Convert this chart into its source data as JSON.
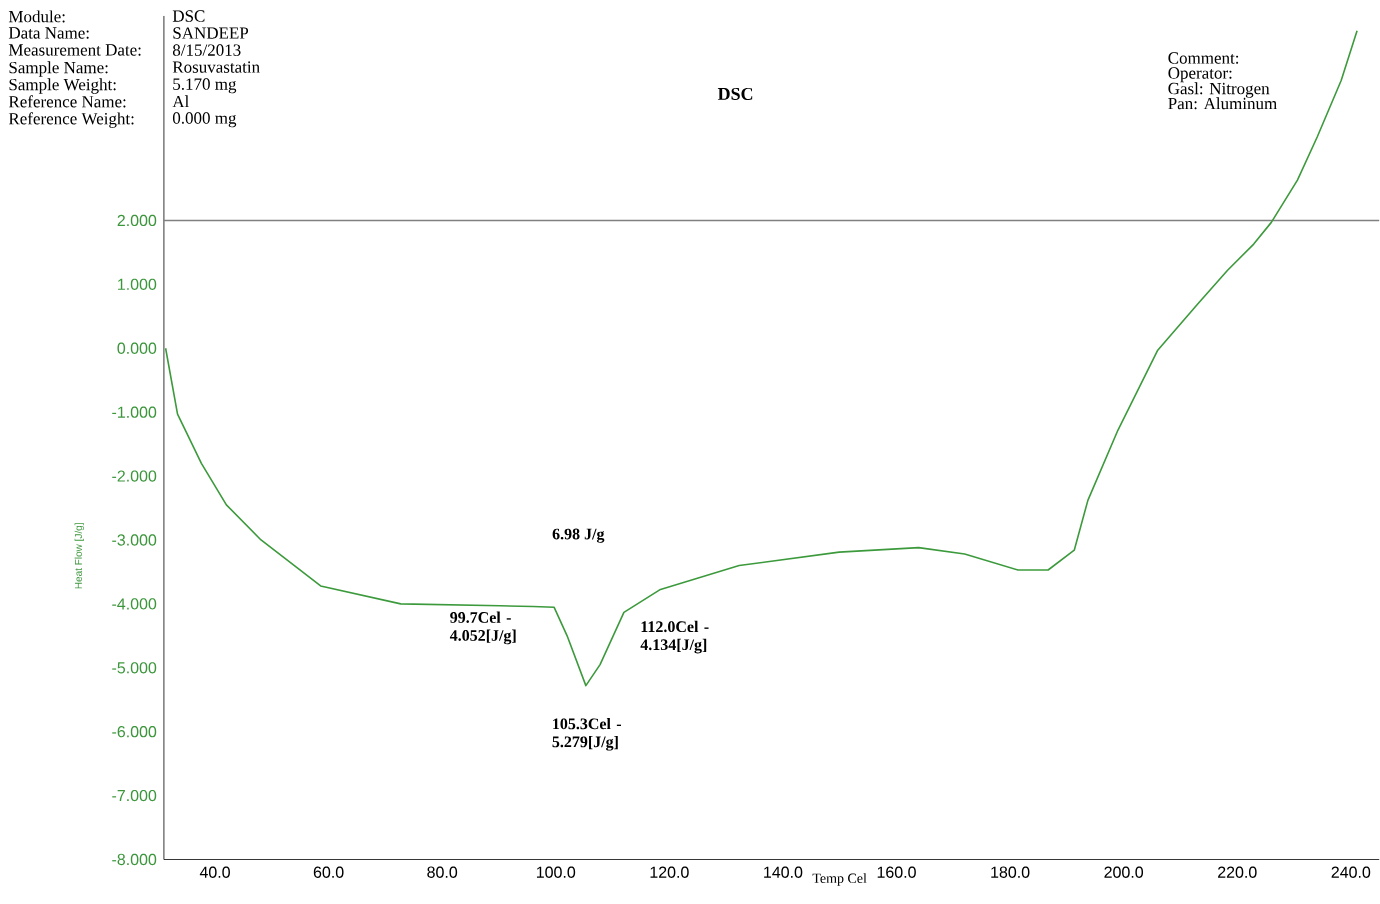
{
  "chart_data": {
    "type": "line",
    "title": "DSC",
    "xlabel": "Temp Cel",
    "ylabel": "Heat Flow [J/g]",
    "annotations": [
      "Module:",
      "DSC",
      "Data Name:",
      "SANDEEP",
      "Measurement Date:",
      "8/15/2013",
      "Sample Name:",
      "Rosuvastatin",
      "Sample Weight:",
      "5.170 mg",
      "Reference Name:",
      "Al",
      "Reference Weight:",
      "0.000 mg",
      "Comment:",
      "Operator:",
      "Gasl: Nitrogen",
      "Pan: Aluminum",
      "6.98 J/g",
      {
        "text": "99.7Cel -4.052[J/g]",
        "x": 99.7,
        "y": -4.052
      },
      {
        "text": "105.3Cel -5.279[J/g]",
        "x": 105.3,
        "y": -5.279
      },
      {
        "text": "112.0Cel -4.134[J/g]",
        "x": 112.0,
        "y": -4.134
      }
    ],
    "series": [
      {
        "color": "#3c9a3c",
        "x": [
          31.3,
          33.4,
          37.6,
          42.0,
          48.1,
          58.6,
          72.7,
          90.2,
          96.0,
          99.7,
          102.0,
          105.3,
          107.8,
          112.0,
          118.3,
          132.3,
          149.9,
          163.9,
          172.0,
          181.4,
          186.7,
          191.3,
          193.7,
          199.0,
          206.0,
          213.0,
          218.3,
          222.9,
          226.0,
          230.6,
          234.1,
          238.3,
          241.1
        ],
        "values": [
          0,
          -1.03,
          -1.8,
          -2.45,
          -3.0,
          -3.72,
          -4.0,
          -4.03,
          -4.04,
          -4.052,
          -4.5,
          -5.279,
          -4.95,
          -4.134,
          -3.78,
          -3.4,
          -3.19,
          -3.12,
          -3.22,
          -3.47,
          -3.47,
          -3.16,
          -2.38,
          -1.28,
          -0.03,
          0.69,
          1.22,
          1.63,
          1.97,
          2.63,
          3.31,
          4.19,
          4.97
        ]
      }
    ],
    "xlim": [
      31,
      245
    ],
    "ylim": [
      -8,
      5.2
    ],
    "xticks": [
      {
        "value": 40,
        "label": "40.0"
      },
      {
        "value": 60,
        "label": "60.0"
      },
      {
        "value": 80,
        "label": "80.0"
      },
      {
        "value": 100,
        "label": "100.0"
      },
      {
        "value": 120,
        "label": "120.0"
      },
      {
        "value": 140,
        "label": "140.0"
      },
      {
        "value": 160,
        "label": "160.0"
      },
      {
        "value": 180,
        "label": "180.0"
      },
      {
        "value": 200,
        "label": "200.0"
      },
      {
        "value": 220,
        "label": "220.0"
      },
      {
        "value": 240,
        "label": "240.0"
      }
    ],
    "yticks": [
      {
        "value": 2,
        "label": "2.000"
      },
      {
        "value": 1,
        "label": "1.000"
      },
      {
        "value": 0,
        "label": "0.000"
      },
      {
        "value": -1,
        "label": "-1.000"
      },
      {
        "value": -2,
        "label": "-2.000"
      },
      {
        "value": -3,
        "label": "-3.000"
      },
      {
        "value": -4,
        "label": "-4.000"
      },
      {
        "value": -5,
        "label": "-5.000"
      },
      {
        "value": -6,
        "label": "-6.000"
      },
      {
        "value": -7,
        "label": "-7.000"
      },
      {
        "value": -8,
        "label": "-8.000"
      }
    ],
    "ref_lines": [
      {
        "axis": "y",
        "value": 2,
        "color": "#808080"
      }
    ],
    "grid": false,
    "marker": "none",
    "line_style": "solid"
  }
}
